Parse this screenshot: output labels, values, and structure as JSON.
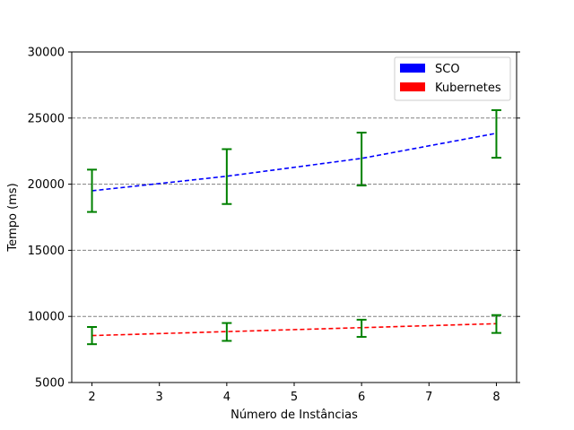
{
  "chart_data": {
    "type": "line",
    "x": [
      2,
      4,
      6,
      8
    ],
    "xticks": [
      2,
      3,
      4,
      5,
      6,
      7,
      8
    ],
    "xlim": [
      1.7,
      8.3
    ],
    "yticks": [
      5000,
      10000,
      15000,
      20000,
      25000,
      30000
    ],
    "ylim": [
      5000,
      30000
    ],
    "xlabel": "Número de Instâncias",
    "ylabel": "Tempo (ms)",
    "title": "",
    "grid": "horizontal dashed",
    "legend_position": "top-right",
    "series": [
      {
        "name": "SCO",
        "color": "#0000ff",
        "errorbar_color": "#008000",
        "values": [
          19500,
          20600,
          21950,
          23850
        ],
        "err_low": [
          17900,
          18500,
          19900,
          22000
        ],
        "err_high": [
          21100,
          22650,
          23900,
          25600
        ]
      },
      {
        "name": "Kubernetes",
        "color": "#ff0000",
        "errorbar_color": "#008000",
        "values": [
          8550,
          8850,
          9150,
          9450
        ],
        "err_low": [
          7900,
          8150,
          8450,
          8750
        ],
        "err_high": [
          9200,
          9500,
          9750,
          10100
        ]
      }
    ]
  }
}
